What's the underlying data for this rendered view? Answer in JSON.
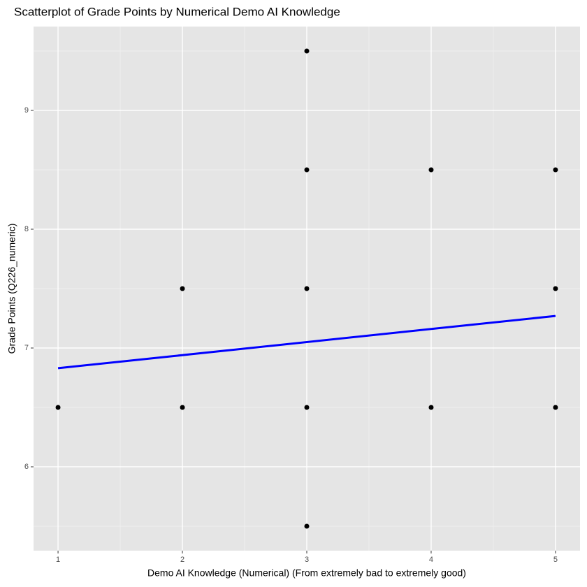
{
  "chart_data": {
    "type": "scatter",
    "title": "Scatterplot of Grade Points by Numerical Demo AI Knowledge",
    "x_label": "Demo AI Knowledge (Numerical) (From extremely bad to extremely good)",
    "y_label": "Grade Points (Q226_numeric)",
    "xlim": [
      0.803,
      5.197
    ],
    "xticks": [
      1,
      2,
      3,
      4,
      5
    ],
    "ylim": [
      5.294,
      9.706
    ],
    "yticks": [
      6,
      7,
      8,
      9
    ],
    "grid": true,
    "series": [
      {
        "type": "scatter",
        "color": "#000000",
        "x": [
          1,
          2,
          2,
          3,
          3,
          3,
          3,
          3,
          4,
          4,
          5,
          5,
          5
        ],
        "values": [
          6.5,
          7.5,
          6.5,
          9.5,
          8.5,
          7.5,
          6.5,
          5.5,
          8.5,
          6.5,
          8.5,
          7.5,
          6.5
        ]
      },
      {
        "type": "line",
        "color": "#0000ff",
        "x": [
          1,
          5
        ],
        "values": [
          6.83,
          7.27
        ]
      }
    ]
  }
}
